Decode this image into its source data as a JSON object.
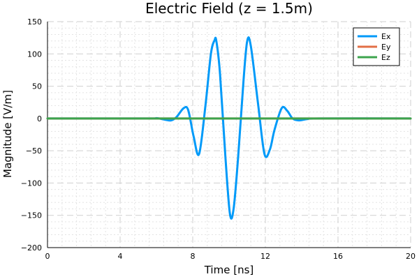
{
  "chart_data": {
    "type": "line",
    "title": "Electric Field (z = 1.5m)",
    "xlabel": "Time [ns]",
    "ylabel": "Magnitude [V/m]",
    "xlim": [
      0,
      20
    ],
    "ylim": [
      -200,
      150
    ],
    "xticks": [
      0,
      4,
      8,
      12,
      16,
      20
    ],
    "yticks": [
      -200,
      -150,
      -100,
      -50,
      0,
      50,
      100,
      150
    ],
    "xtick_labels": [
      "0",
      "4",
      "8",
      "12",
      "16",
      "20"
    ],
    "ytick_labels": [
      "−200",
      "−150",
      "−100",
      "−50",
      "0",
      "50",
      "100",
      "150"
    ],
    "grid": true,
    "legend_position": "top-right",
    "series": [
      {
        "name": "Ex",
        "color": "#009af9",
        "x": [
          0,
          5.5,
          6.0,
          6.5,
          6.8,
          7.1,
          7.5,
          7.75,
          8.05,
          8.35,
          8.7,
          9.0,
          9.2,
          9.3,
          9.5,
          9.8,
          10.05,
          10.25,
          10.5,
          10.8,
          11.0,
          11.2,
          11.6,
          11.95,
          12.25,
          12.5,
          12.9,
          13.2,
          13.5,
          13.85,
          14.3,
          15.0,
          20
        ],
        "y": [
          0,
          0,
          0.5,
          -2,
          -3,
          2,
          16,
          13,
          -28,
          -55,
          20,
          100,
          121,
          120,
          70,
          -60,
          -148,
          -140,
          -60,
          60,
          120,
          112,
          22,
          -55,
          -48,
          -18,
          16,
          12,
          0,
          -3,
          -1,
          0,
          0
        ]
      },
      {
        "name": "Ey",
        "color": "#e26f46",
        "x": [
          0,
          20
        ],
        "y": [
          0,
          0
        ]
      },
      {
        "name": "Ez",
        "color": "#3da44d",
        "x": [
          0,
          20
        ],
        "y": [
          0,
          0
        ]
      }
    ]
  }
}
